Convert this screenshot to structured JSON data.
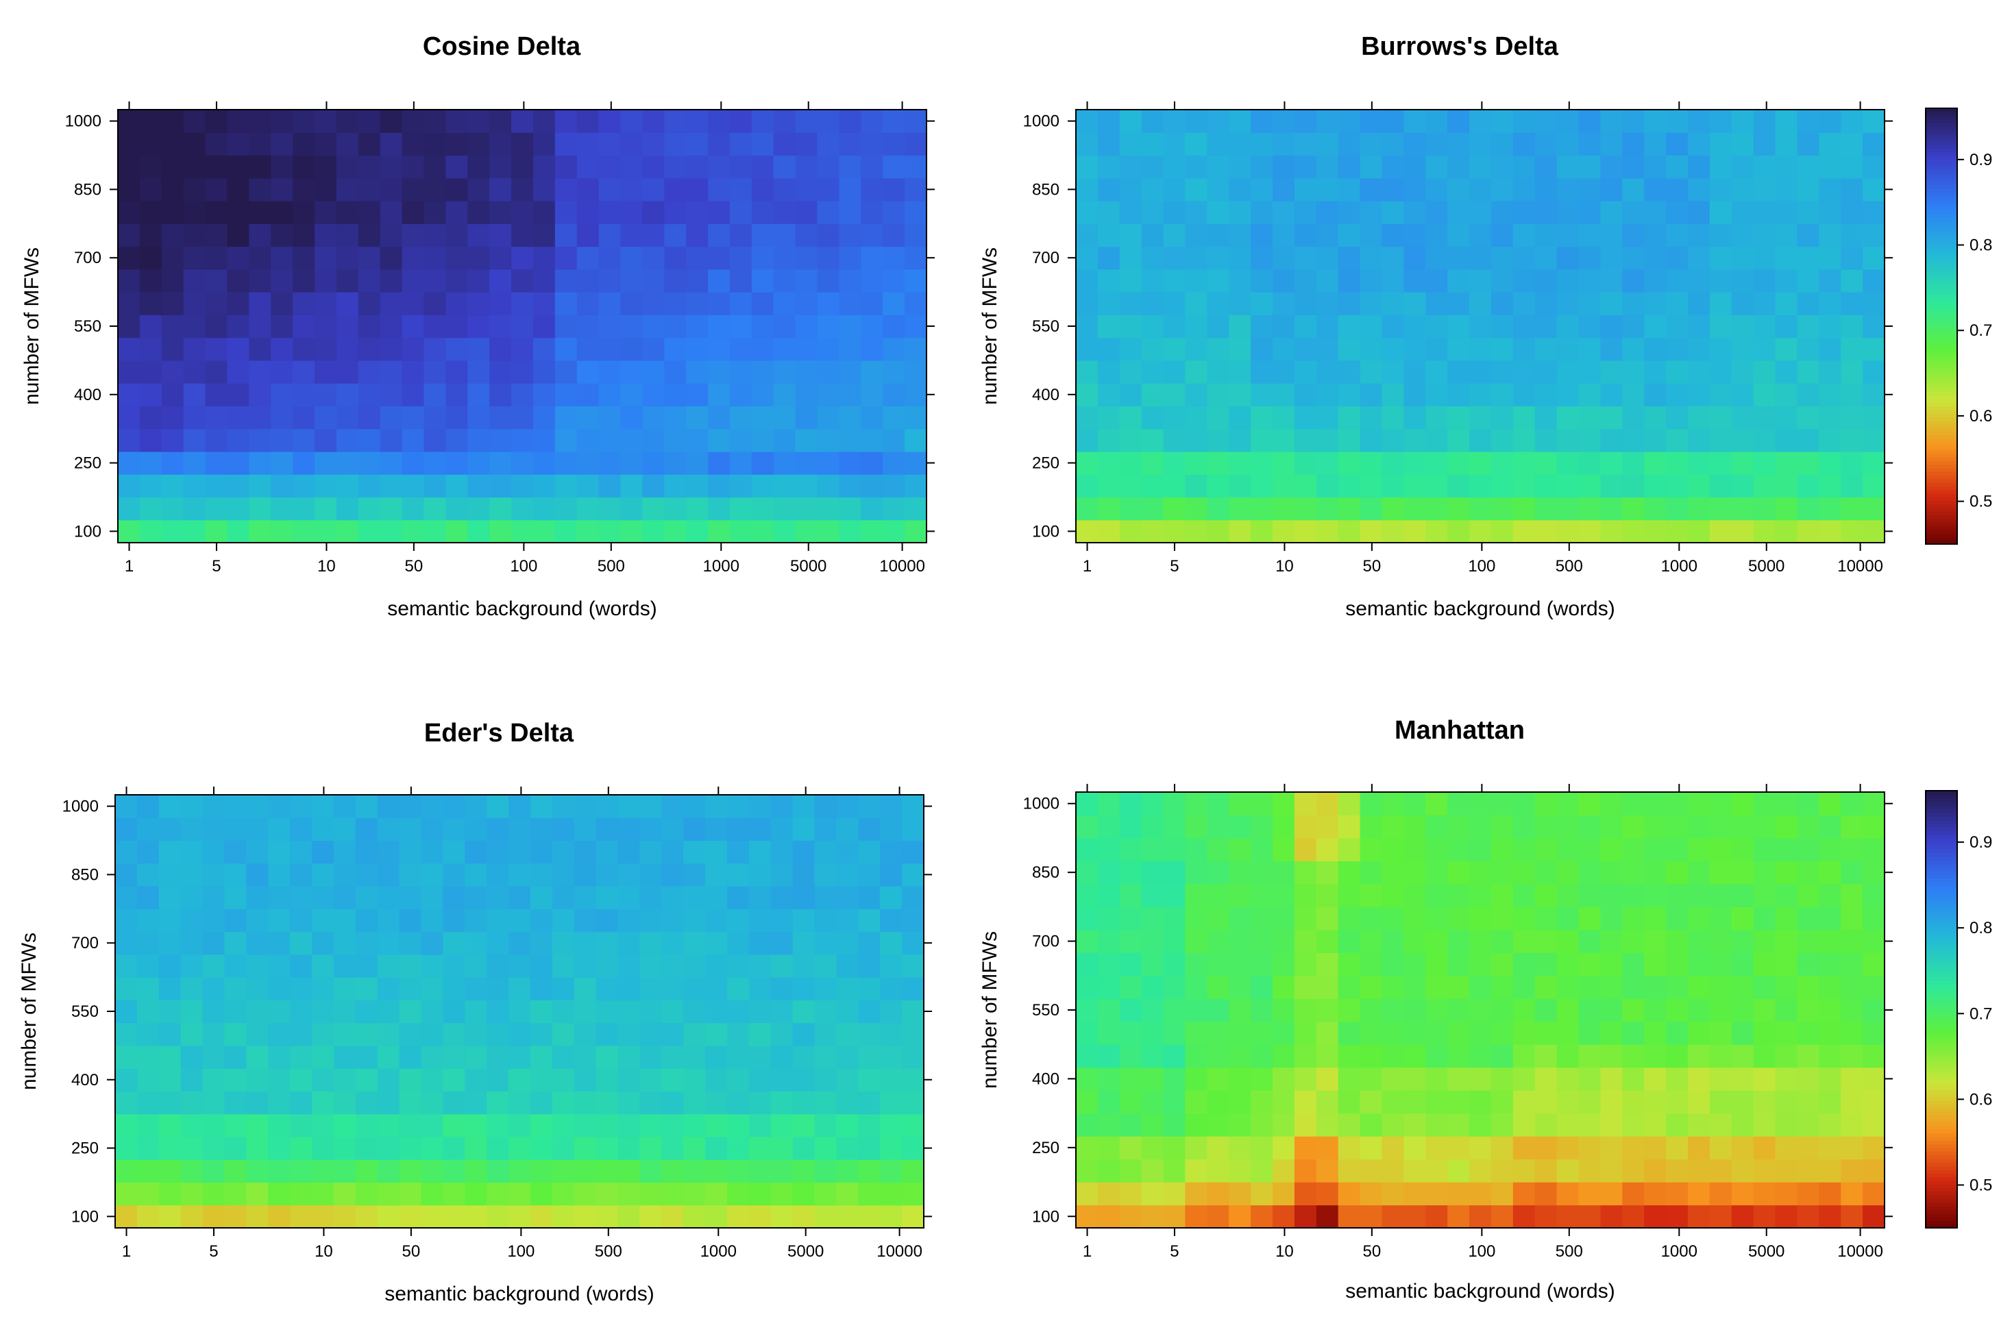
{
  "chart_data": [
    {
      "type": "heatmap",
      "title": "Cosine Delta",
      "xlabel": "semantic background (words)",
      "ylabel": "number of MFWs",
      "xticks": [
        "1",
        "5",
        "10",
        "50",
        "100",
        "500",
        "1000",
        "5000",
        "10000"
      ],
      "yticks": [
        "100",
        "250",
        "400",
        "550",
        "700",
        "850",
        "1000"
      ],
      "x_scale": "log",
      "ylim": [
        100,
        1000
      ],
      "zlim": [
        0.45,
        0.96
      ],
      "grid": false,
      "legend": "none",
      "trend_description_values": {
        "corners": {
          "low_words_low_mfw": 0.72,
          "low_words_high_mfw": 0.92,
          "high_words_low_mfw": 0.72,
          "high_words_high_mfw": 0.86
        },
        "rows_by_mfw": {
          "100": 0.72,
          "150": 0.77,
          "200": 0.8,
          "250": 0.84,
          "400": 0.89,
          "700": 0.92,
          "1000": 0.93
        }
      }
    },
    {
      "type": "heatmap",
      "title": "Burrows's Delta",
      "xlabel": "semantic background (words)",
      "ylabel": "number of MFWs",
      "xticks": [
        "1",
        "5",
        "10",
        "50",
        "100",
        "500",
        "1000",
        "5000",
        "10000"
      ],
      "yticks": [
        "100",
        "250",
        "400",
        "550",
        "700",
        "850",
        "1000"
      ],
      "x_scale": "log",
      "ylim": [
        100,
        1000
      ],
      "zlim": [
        0.45,
        0.96
      ],
      "grid": false,
      "legend": "right colorbar",
      "trend_description_values": {
        "rows_by_mfw": {
          "100": 0.64,
          "150": 0.7,
          "250": 0.74,
          "400": 0.78,
          "700": 0.79,
          "1000": 0.8
        }
      }
    },
    {
      "type": "heatmap",
      "title": "Eder's Delta",
      "xlabel": "semantic background (words)",
      "ylabel": "number of MFWs",
      "xticks": [
        "1",
        "5",
        "10",
        "50",
        "100",
        "500",
        "1000",
        "5000",
        "10000"
      ],
      "yticks": [
        "100",
        "250",
        "400",
        "550",
        "700",
        "850",
        "1000"
      ],
      "x_scale": "log",
      "ylim": [
        100,
        1000
      ],
      "zlim": [
        0.45,
        0.96
      ],
      "grid": false,
      "legend": "none",
      "trend_description_values": {
        "rows_by_mfw": {
          "100": 0.63,
          "150": 0.67,
          "250": 0.73,
          "400": 0.77,
          "700": 0.79,
          "1000": 0.8
        }
      }
    },
    {
      "type": "heatmap",
      "title": "Manhattan",
      "xlabel": "semantic background (words)",
      "ylabel": "number of MFWs",
      "xticks": [
        "1",
        "5",
        "10",
        "50",
        "100",
        "500",
        "1000",
        "5000",
        "10000"
      ],
      "yticks": [
        "100",
        "250",
        "400",
        "550",
        "700",
        "850",
        "1000"
      ],
      "x_scale": "log",
      "ylim": [
        100,
        1000
      ],
      "zlim": [
        0.45,
        0.96
      ],
      "grid": false,
      "legend": "right colorbar",
      "trend_description_values": {
        "rows_by_mfw": {
          "100": 0.54,
          "250": 0.6,
          "400": 0.66,
          "700": 0.69,
          "1000": 0.68
        },
        "dip_near_words": 20
      }
    }
  ],
  "colorbar": {
    "ticks": [
      "0.5",
      "0.6",
      "0.7",
      "0.8",
      "0.9"
    ],
    "tick_values": [
      0.5,
      0.6,
      0.7,
      0.8,
      0.9
    ],
    "range": [
      0.45,
      0.96
    ],
    "colors": [
      "#6b0000",
      "#d42a10",
      "#f7931e",
      "#c9e63a",
      "#5ff03c",
      "#2ee89a",
      "#23b8d8",
      "#2e7ef5",
      "#3a3fc8",
      "#241a4d"
    ]
  }
}
